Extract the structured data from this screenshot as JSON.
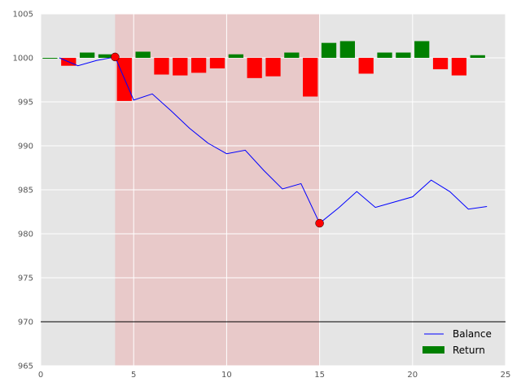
{
  "chart_data": {
    "type": "bar",
    "xlim": [
      0,
      25
    ],
    "ylim": [
      965,
      1005
    ],
    "xticks": [
      "0",
      "5",
      "10",
      "15",
      "20",
      "25"
    ],
    "yticks": [
      "965",
      "970",
      "975",
      "980",
      "985",
      "990",
      "995",
      "1000",
      "1005"
    ],
    "grid": true,
    "legend_placement": "bottom-right",
    "baseline": 1000,
    "reference_line": 970,
    "drawdown_span": [
      4,
      15
    ],
    "colors": {
      "background": "#e5e5e5",
      "grid": "#ffffff",
      "balance": "#0000ff",
      "positive_return": "#008000",
      "negative_return": "#ff0000",
      "drawdown_span": "#ff0000",
      "marker": "#ff0000",
      "reference_line": "#000000"
    },
    "series": [
      {
        "name": "Balance",
        "kind": "line",
        "x": [
          1,
          2,
          3,
          4,
          5,
          6,
          7,
          8,
          9,
          10,
          11,
          12,
          13,
          14,
          15,
          16,
          17,
          18,
          19,
          20,
          21,
          22,
          23,
          24
        ],
        "values": [
          1000.0,
          999.1,
          999.7,
          1000.1,
          995.2,
          995.9,
          994.0,
          992.0,
          990.3,
          989.1,
          989.5,
          987.2,
          985.1,
          985.7,
          981.2,
          982.9,
          984.8,
          983.0,
          983.6,
          984.2,
          986.1,
          984.8,
          982.8,
          983.1
        ]
      },
      {
        "name": "Return",
        "kind": "bar",
        "x": [
          0,
          1,
          2,
          3,
          4,
          5,
          6,
          7,
          8,
          9,
          10,
          11,
          12,
          13,
          14,
          15,
          16,
          17,
          18,
          19,
          20,
          21,
          22,
          23
        ],
        "values": [
          0.0,
          -0.9,
          0.6,
          0.4,
          -4.9,
          0.7,
          -1.9,
          -2.0,
          -1.7,
          -1.2,
          0.4,
          -2.3,
          -2.1,
          0.6,
          -4.4,
          1.7,
          1.9,
          -1.8,
          0.6,
          0.6,
          1.9,
          -1.3,
          -2.0,
          0.3
        ]
      }
    ],
    "markers": [
      {
        "x": 4,
        "y": 1000.1
      },
      {
        "x": 15,
        "y": 981.2
      }
    ]
  }
}
